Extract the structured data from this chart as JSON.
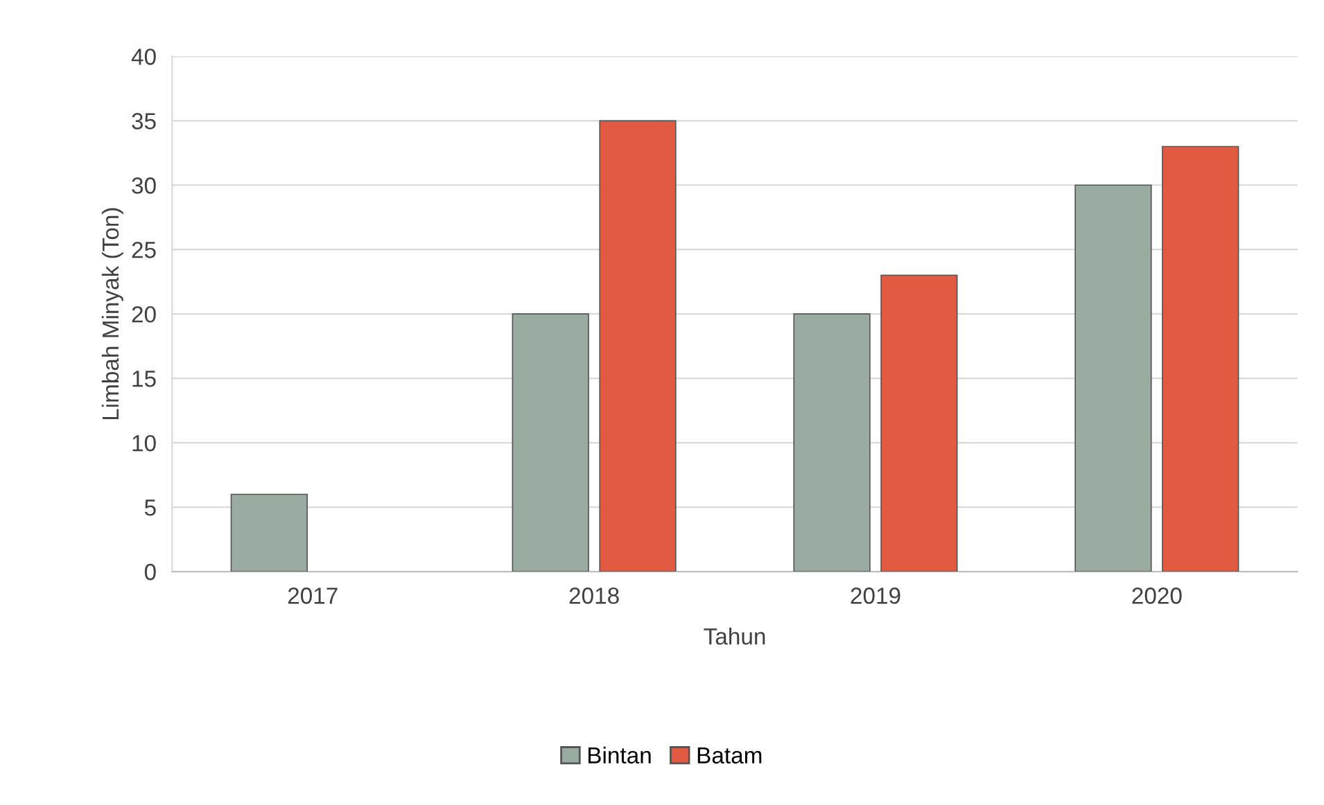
{
  "chart_data": {
    "type": "bar",
    "xlabel": "Tahun",
    "ylabel": "Limbah Minyak (Ton)",
    "categories": [
      "2017",
      "2018",
      "2019",
      "2020"
    ],
    "series": [
      {
        "name": "Bintan",
        "color": "#9aaca2",
        "values": [
          6,
          20,
          20,
          30
        ]
      },
      {
        "name": "Batam",
        "color": "#e35a42",
        "values": [
          null,
          35,
          23,
          33
        ]
      }
    ],
    "ylim": [
      0,
      40
    ],
    "yticks": [
      0,
      5,
      10,
      15,
      20,
      25,
      30,
      35,
      40
    ],
    "grid": "y",
    "legend": "bottom"
  }
}
